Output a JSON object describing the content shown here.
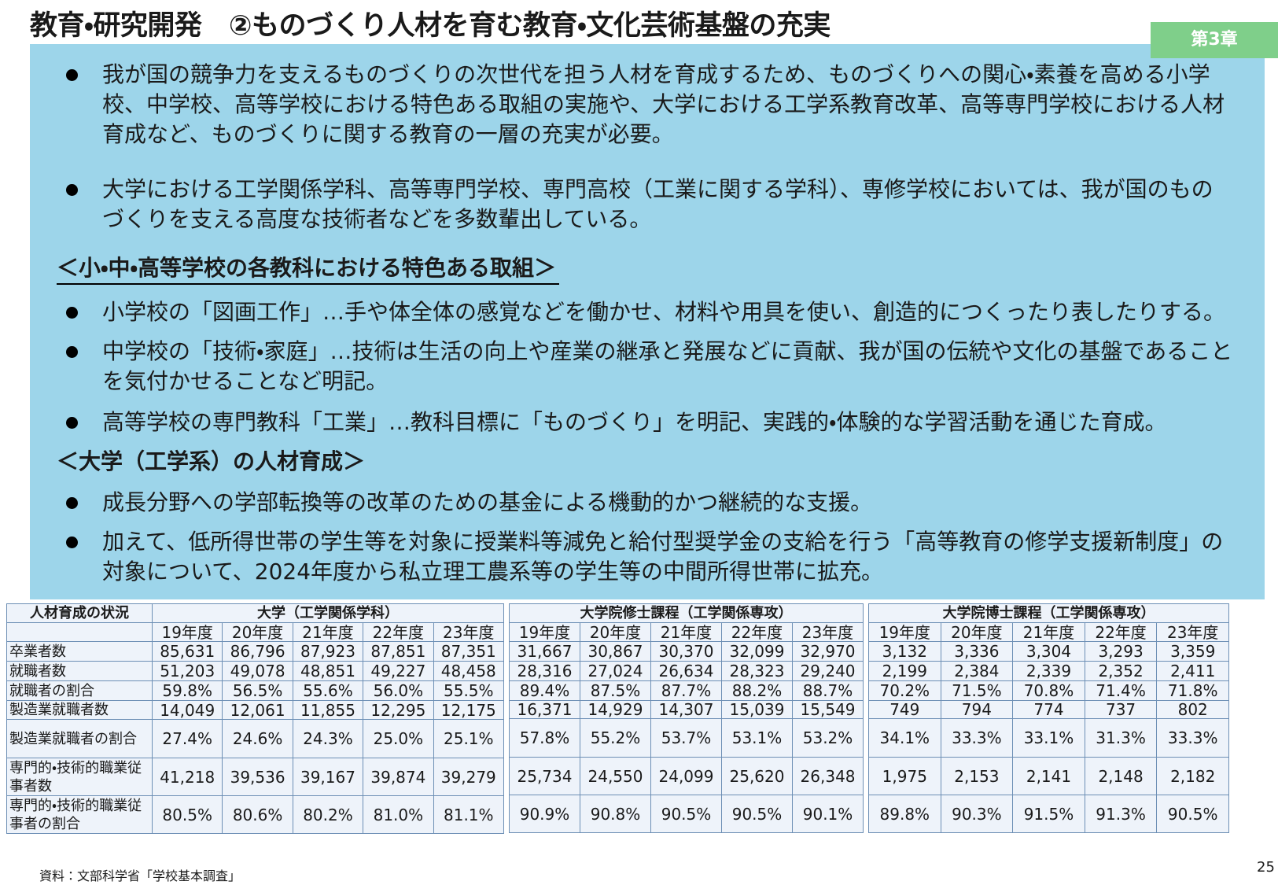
{
  "title": "教育・研究開発　②ものづくり人材を育む教育・文化芸術基盤の充実",
  "badge": "第3章",
  "bullets1": [
    "我が国の競争力を支えるものづくりの次世代を担う人材を育成するため、ものづくりへの関心・素養を高める小学校、中学校、高等学校における特色ある取組の実施や、大学における工学系教育改革、高等専門学校における人材育成など、ものづくりに関する教育の一層の充実が必要。",
    "大学における工学関係学科、高等専門学校、専門高校（工業に関する学科）、専修学校においては、我が国のものづくりを支える高度な技術者などを多数輩出している。"
  ],
  "section1": "＜小・中・高等学校の各教科における特色ある取組＞",
  "bullets2": [
    "小学校の「図画工作」…手や体全体の感覚などを働かせ、材料や用具を使い、創造的につくったり表したりする。",
    "中学校の「技術・家庭」…技術は生活の向上や産業の継承と発展などに貢献、我が国の伝統や文化の基盤であることを気付かせることなど明記。",
    "高等学校の専門教科「工業」…教科目標に「ものづくり」を明記、実践的・体験的な学習活動を通じた育成。"
  ],
  "section2": "＜大学（工学系）の人材育成＞",
  "bullets3": [
    "成長分野への学部転換等の改革のための基金による機動的かつ継続的な支援。",
    "加えて、低所得世帯の学生等を対象に授業料等減免と給付型奨学金の支給を行う「高等教育の修学支援新制度」の対象について、2024年度から私立理工農系等の学生等の中間所得世帯に拡充。"
  ],
  "table": {
    "row_header": "人材育成の状況",
    "row_labels": [
      "卒業者数",
      "就職者数",
      "就職者の割合",
      "製造業就職者数",
      "製造業就職者の割合",
      "専門的・技術的職業従事者数",
      "専門的・技術的職業従事者の割合"
    ],
    "groups": [
      {
        "title": "大学（工学関係学科）",
        "years": [
          "19年度",
          "20年度",
          "21年度",
          "22年度",
          "23年度"
        ],
        "rows": [
          [
            "85,631",
            "86,796",
            "87,923",
            "87,851",
            "87,351"
          ],
          [
            "51,203",
            "49,078",
            "48,851",
            "49,227",
            "48,458"
          ],
          [
            "59.8%",
            "56.5%",
            "55.6%",
            "56.0%",
            "55.5%"
          ],
          [
            "14,049",
            "12,061",
            "11,855",
            "12,295",
            "12,175"
          ],
          [
            "27.4%",
            "24.6%",
            "24.3%",
            "25.0%",
            "25.1%"
          ],
          [
            "41,218",
            "39,536",
            "39,167",
            "39,874",
            "39,279"
          ],
          [
            "80.5%",
            "80.6%",
            "80.2%",
            "81.0%",
            "81.1%"
          ]
        ]
      },
      {
        "title": "大学院修士課程（工学関係専攻）",
        "years": [
          "19年度",
          "20年度",
          "21年度",
          "22年度",
          "23年度"
        ],
        "rows": [
          [
            "31,667",
            "30,867",
            "30,370",
            "32,099",
            "32,970"
          ],
          [
            "28,316",
            "27,024",
            "26,634",
            "28,323",
            "29,240"
          ],
          [
            "89.4%",
            "87.5%",
            "87.7%",
            "88.2%",
            "88.7%"
          ],
          [
            "16,371",
            "14,929",
            "14,307",
            "15,039",
            "15,549"
          ],
          [
            "57.8%",
            "55.2%",
            "53.7%",
            "53.1%",
            "53.2%"
          ],
          [
            "25,734",
            "24,550",
            "24,099",
            "25,620",
            "26,348"
          ],
          [
            "90.9%",
            "90.8%",
            "90.5%",
            "90.5%",
            "90.1%"
          ]
        ]
      },
      {
        "title": "大学院博士課程（工学関係専攻）",
        "years": [
          "19年度",
          "20年度",
          "21年度",
          "22年度",
          "23年度"
        ],
        "rows": [
          [
            "3,132",
            "3,336",
            "3,304",
            "3,293",
            "3,359"
          ],
          [
            "2,199",
            "2,384",
            "2,339",
            "2,352",
            "2,411"
          ],
          [
            "70.2%",
            "71.5%",
            "70.8%",
            "71.4%",
            "71.8%"
          ],
          [
            "749",
            "794",
            "774",
            "737",
            "802"
          ],
          [
            "34.1%",
            "33.3%",
            "33.1%",
            "31.3%",
            "33.3%"
          ],
          [
            "1,975",
            "2,153",
            "2,141",
            "2,148",
            "2,182"
          ],
          [
            "89.8%",
            "90.3%",
            "91.5%",
            "91.3%",
            "90.5%"
          ]
        ]
      }
    ]
  },
  "source": "資料：文部科学省「学校基本調査」",
  "page_number": "25"
}
